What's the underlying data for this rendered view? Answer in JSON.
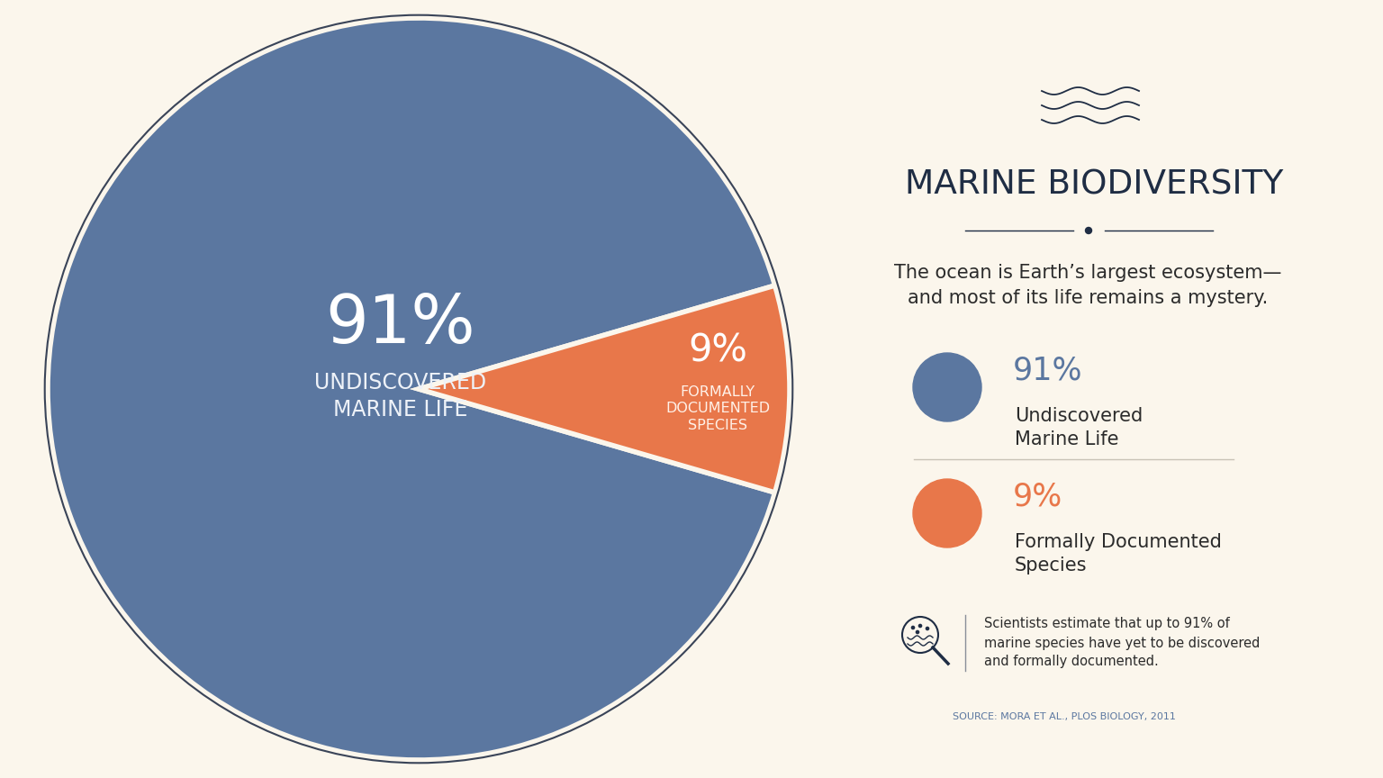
{
  "chart_data": {
    "type": "pie",
    "title": "MARINE BIODIVERSITY",
    "subtitle": "The ocean is Earth’s largest ecosystem—and most of its life remains a mystery.",
    "categories": [
      "Undiscovered Marine Life",
      "Formally Documented Species"
    ],
    "slice_labels": [
      "UNDISCOVERED MARINE LIFE",
      "FORMALLY DOCUMENTED SPECIES"
    ],
    "values": [
      91,
      9
    ],
    "value_labels": [
      "91%",
      "9%"
    ],
    "colors": [
      "#5b77a0",
      "#e8774a"
    ],
    "data_labels": true,
    "note": "Scientists estimate that up to 91% of marine species have yet to be discovered and formally documented.",
    "source": "SOURCE: MORA ET AL., PLOS BIOLOGY, 2011"
  }
}
